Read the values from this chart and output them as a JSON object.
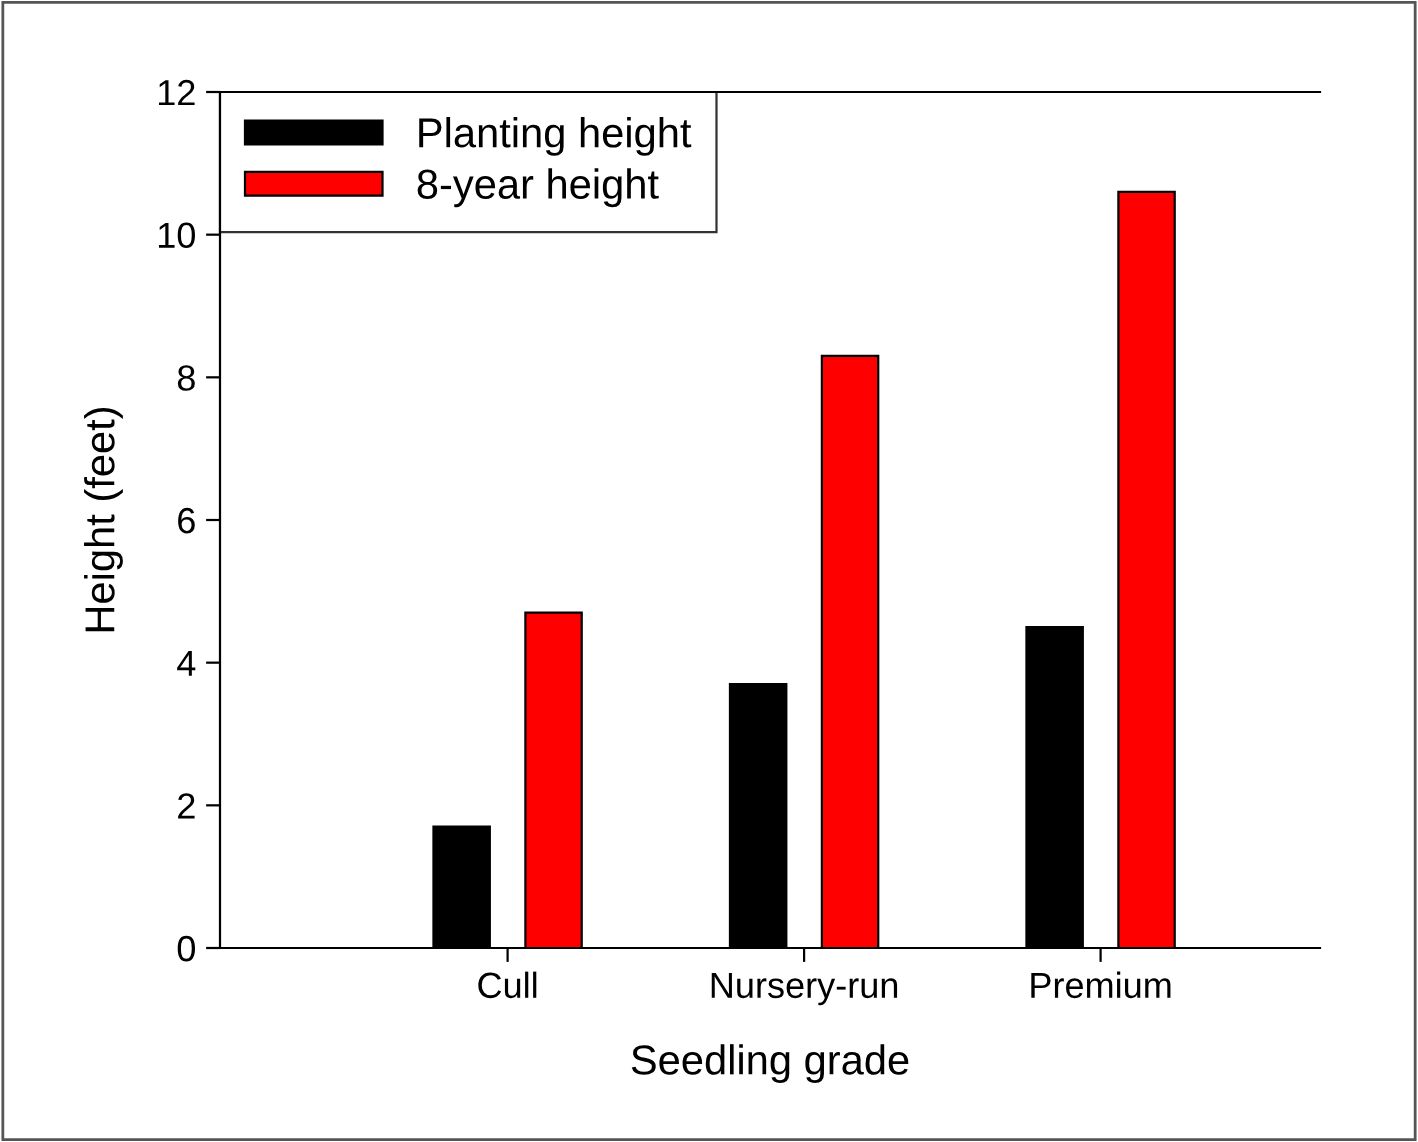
{
  "chart_data": {
    "type": "bar",
    "xlabel": "Seedling grade",
    "ylabel": "Height (feet)",
    "categories": [
      "Cull",
      "Nursery-run",
      "Premium"
    ],
    "series": [
      {
        "name": "Planting height",
        "color": "#000000",
        "values": [
          1.7,
          3.7,
          4.5
        ]
      },
      {
        "name": "8-year height",
        "color": "#ff0000",
        "values": [
          4.7,
          8.3,
          10.6
        ]
      }
    ],
    "ylim": [
      0,
      12
    ],
    "yticks": [
      0,
      2,
      4,
      6,
      8,
      10,
      12
    ],
    "grid": false,
    "legend": "top left"
  }
}
